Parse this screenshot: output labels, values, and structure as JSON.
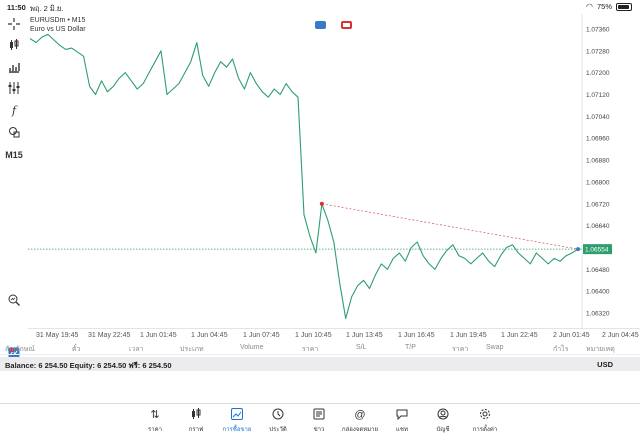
{
  "status_bar": {
    "time": "11:50",
    "date": "พฤ. 2 มิ.ย.",
    "battery": "75%"
  },
  "symbol": {
    "name": "EURUSDm • M15",
    "description": "Euro vs US Dollar"
  },
  "current_price": "1.06554",
  "price_axis": [
    "1.07360",
    "1.07280",
    "1.07200",
    "1.07120",
    "1.07040",
    "1.06960",
    "1.06880",
    "1.06800",
    "1.06720",
    "1.06640",
    "1.06560",
    "1.06480",
    "1.06400",
    "1.06320"
  ],
  "time_axis": [
    "31 May 19:45",
    "31 May 22:45",
    "1 Jun 01:45",
    "1 Jun 04:45",
    "1 Jun 07:45",
    "1 Jun 10:45",
    "1 Jun 13:45",
    "1 Jun 16:45",
    "1 Jun 19:45",
    "1 Jun 22:45",
    "2 Jun 01:45",
    "2 Jun 04:45"
  ],
  "table_headers": [
    "สัญลักษณ์",
    "ตั๋ว",
    "เวลา",
    "ประเภท",
    "Volume",
    "ราคา",
    "S/L",
    "T/P",
    "ราคา",
    "Swap",
    "กำไร",
    "หมายเหตุ"
  ],
  "balance_line": "Balance: 6 254.50 Equity: 6 254.50 ฟรี: 6 254.50",
  "balance_currency": "USD",
  "toolbar": {
    "timeframe": "M15"
  },
  "nav": [
    {
      "label": "ราคา",
      "icon": "quotes-icon"
    },
    {
      "label": "กราฟ",
      "icon": "chart-icon"
    },
    {
      "label": "การซื้อขาย",
      "icon": "trade-icon",
      "active": true
    },
    {
      "label": "ประวัติ",
      "icon": "history-icon"
    },
    {
      "label": "ข่าว",
      "icon": "news-icon"
    },
    {
      "label": "กล่องจดหมาย",
      "icon": "mailbox-icon"
    },
    {
      "label": "แชท",
      "icon": "chat-icon"
    },
    {
      "label": "บัญชี",
      "icon": "account-icon"
    },
    {
      "label": "การตั้งค่า",
      "icon": "settings-icon"
    }
  ],
  "colors": {
    "line": "#2e9e6e",
    "price_tag": "#2e9e6e",
    "entry_marker": "#d93030",
    "active_nav": "#1a72d6"
  },
  "chart_data": {
    "type": "line",
    "ylim": [
      1.0628,
      1.074
    ],
    "y": [
      1.07325,
      1.0731,
      1.0733,
      1.0734,
      1.0732,
      1.073,
      1.07285,
      1.0729,
      1.07275,
      1.0726,
      1.0715,
      1.0712,
      1.0717,
      1.0713,
      1.0715,
      1.0718,
      1.072,
      1.0717,
      1.0714,
      1.0716,
      1.072,
      1.0724,
      1.0728,
      1.0712,
      1.0714,
      1.0716,
      1.072,
      1.0724,
      1.0731,
      1.0719,
      1.0715,
      1.072,
      1.0724,
      1.0722,
      1.0725,
      1.0718,
      1.0714,
      1.072,
      1.0716,
      1.0713,
      1.0711,
      1.0714,
      1.0712,
      1.0716,
      1.0713,
      1.0711,
      1.0668,
      1.066,
      1.0654,
      1.0672,
      1.0666,
      1.0658,
      1.0643,
      1.063,
      1.0638,
      1.0642,
      1.0644,
      1.0641,
      1.0646,
      1.065,
      1.0648,
      1.0652,
      1.0654,
      1.0651,
      1.0656,
      1.0658,
      1.0653,
      1.065,
      1.0648,
      1.0652,
      1.0655,
      1.0657,
      1.0653,
      1.0652,
      1.065,
      1.0652,
      1.0654,
      1.0651,
      1.0649,
      1.0653,
      1.0656,
      1.0657,
      1.0654,
      1.0652,
      1.065,
      1.0654,
      1.0652,
      1.065,
      1.0652,
      1.0651,
      1.0653,
      1.0654,
      1.06554
    ],
    "current": 1.06554,
    "entry_index": 49
  }
}
